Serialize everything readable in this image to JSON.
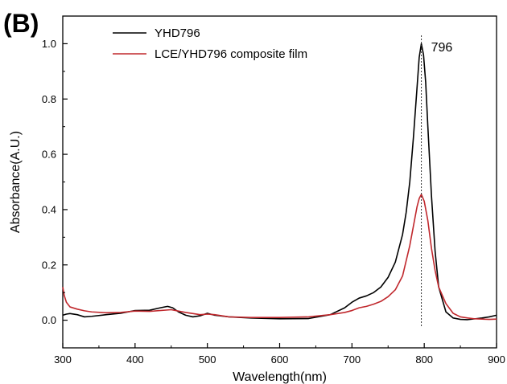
{
  "panel_label": "(B)",
  "chart_data": {
    "type": "line",
    "title": "",
    "xlabel": "Wavelength(nm)",
    "ylabel": "Absorbance(A.U.)",
    "xlim": [
      300,
      900
    ],
    "ylim": [
      -0.1,
      1.1
    ],
    "x_ticks": [
      300,
      400,
      500,
      600,
      700,
      800,
      900
    ],
    "x_tick_labels": [
      "300",
      "400",
      "500",
      "600",
      "700",
      "800",
      "900"
    ],
    "y_ticks": [
      0.0,
      0.2,
      0.4,
      0.6,
      0.8,
      1.0
    ],
    "y_tick_labels": [
      "0.0",
      "0.2",
      "0.4",
      "0.6",
      "0.8",
      "1.0"
    ],
    "grid": false,
    "legend_position": "top-center",
    "annotation": {
      "text": "796",
      "x": 796
    },
    "series": [
      {
        "name": "YHD796",
        "color": "#000000",
        "x": [
          300,
          305,
          310,
          320,
          330,
          340,
          360,
          380,
          400,
          420,
          435,
          445,
          452,
          460,
          470,
          480,
          490,
          500,
          510,
          530,
          560,
          600,
          640,
          670,
          690,
          700,
          710,
          720,
          730,
          740,
          750,
          760,
          770,
          775,
          780,
          785,
          790,
          793,
          796,
          799,
          802,
          805,
          810,
          815,
          820,
          830,
          840,
          850,
          860,
          870,
          880,
          890,
          900
        ],
        "y": [
          0.018,
          0.022,
          0.024,
          0.02,
          0.012,
          0.014,
          0.02,
          0.025,
          0.035,
          0.036,
          0.045,
          0.05,
          0.045,
          0.03,
          0.018,
          0.012,
          0.016,
          0.025,
          0.018,
          0.012,
          0.008,
          0.005,
          0.006,
          0.02,
          0.045,
          0.065,
          0.08,
          0.088,
          0.1,
          0.12,
          0.155,
          0.21,
          0.31,
          0.39,
          0.5,
          0.66,
          0.84,
          0.95,
          1.0,
          0.96,
          0.86,
          0.7,
          0.45,
          0.25,
          0.12,
          0.03,
          0.008,
          0.003,
          0.002,
          0.005,
          0.008,
          0.012,
          0.018
        ]
      },
      {
        "name": "LCE/YHD796 composite film",
        "color": "#c0282d",
        "x": [
          300,
          302,
          305,
          310,
          320,
          330,
          340,
          360,
          380,
          400,
          420,
          450,
          470,
          490,
          500,
          510,
          530,
          560,
          600,
          640,
          670,
          690,
          700,
          710,
          720,
          730,
          740,
          750,
          760,
          770,
          780,
          785,
          790,
          793,
          796,
          800,
          805,
          810,
          815,
          820,
          830,
          840,
          850,
          860,
          870,
          880,
          890,
          900
        ],
        "y": [
          0.12,
          0.09,
          0.065,
          0.048,
          0.04,
          0.034,
          0.03,
          0.027,
          0.028,
          0.033,
          0.032,
          0.038,
          0.028,
          0.02,
          0.022,
          0.02,
          0.012,
          0.01,
          0.01,
          0.012,
          0.02,
          0.028,
          0.035,
          0.045,
          0.05,
          0.058,
          0.068,
          0.085,
          0.11,
          0.16,
          0.27,
          0.34,
          0.41,
          0.44,
          0.455,
          0.43,
          0.36,
          0.26,
          0.18,
          0.12,
          0.06,
          0.025,
          0.012,
          0.008,
          0.005,
          0.004,
          0.003,
          0.004
        ]
      }
    ]
  }
}
